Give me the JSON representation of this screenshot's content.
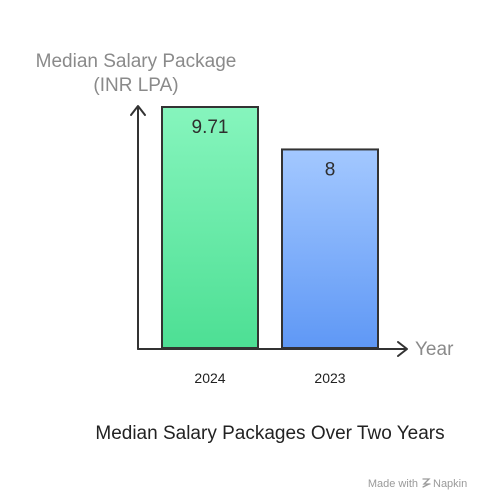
{
  "chart_data": {
    "type": "bar",
    "title": "Median Salary Packages Over Two Years",
    "ylabel_lines": [
      "Median Salary Package",
      "(INR LPA)"
    ],
    "xlabel": "Year",
    "categories": [
      "2024",
      "2023"
    ],
    "values": [
      9.71,
      8
    ],
    "value_labels": [
      "9.71",
      "8"
    ],
    "ylim": [
      0,
      9.71
    ],
    "grid": false,
    "colors": {
      "bar_2024_top": "#86f5bd",
      "bar_2024_bottom": "#4ddf94",
      "bar_2023_top": "#a3c8ff",
      "bar_2023_bottom": "#5f98f5",
      "outline": "#333333",
      "axis": "#333333"
    }
  },
  "watermark": {
    "prefix": "Made with",
    "brand": "Napkin"
  }
}
